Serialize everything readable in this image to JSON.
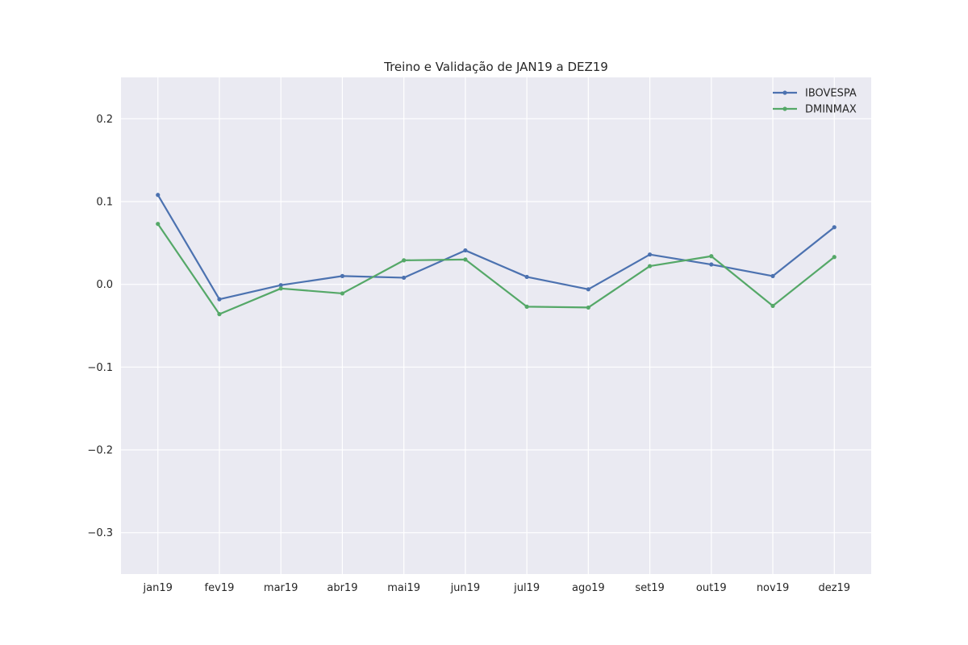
{
  "chart_data": {
    "type": "line",
    "title": "Treino e Validação de JAN19 a DEZ19",
    "xlabel": "",
    "ylabel": "",
    "categories": [
      "jan19",
      "fev19",
      "mar19",
      "abr19",
      "mai19",
      "jun19",
      "jul19",
      "ago19",
      "set19",
      "out19",
      "nov19",
      "dez19"
    ],
    "yticks": [
      0.2,
      0.1,
      0.0,
      -0.1,
      -0.2,
      -0.3
    ],
    "ytick_labels": [
      "0.2",
      "0.1",
      "0.0",
      "−0.1",
      "−0.2",
      "−0.3"
    ],
    "ylim": [
      -0.35,
      0.25
    ],
    "grid": true,
    "legend_position": "top-right",
    "series": [
      {
        "name": "IBOVESPA",
        "color": "#4c72b0",
        "marker": "point",
        "values": [
          0.108,
          -0.018,
          -0.001,
          0.01,
          0.008,
          0.041,
          0.009,
          -0.006,
          0.036,
          0.024,
          0.01,
          0.069
        ]
      },
      {
        "name": "DMINMAX",
        "color": "#55a868",
        "marker": "point",
        "values": [
          0.073,
          -0.036,
          -0.005,
          -0.011,
          0.029,
          0.03,
          -0.027,
          -0.028,
          0.022,
          0.034,
          -0.026,
          0.033
        ]
      }
    ],
    "colors": {
      "plot_background": "#eaeaf2",
      "grid": "#ffffff",
      "text": "#262626"
    }
  }
}
